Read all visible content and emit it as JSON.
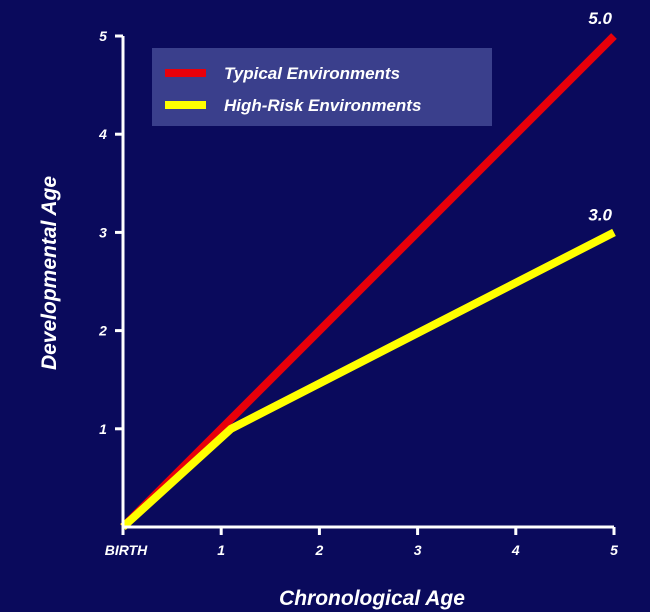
{
  "chart_data": {
    "type": "line",
    "xlabel": "Chronological Age",
    "ylabel": "Developmental Age",
    "xlim": [
      0,
      5
    ],
    "ylim": [
      0,
      5
    ],
    "x_ticks": [
      {
        "value": 0,
        "label": "BIRTH"
      },
      {
        "value": 1,
        "label": "1"
      },
      {
        "value": 2,
        "label": "2"
      },
      {
        "value": 3,
        "label": "3"
      },
      {
        "value": 4,
        "label": "4"
      },
      {
        "value": 5,
        "label": "5"
      }
    ],
    "y_ticks": [
      {
        "value": 1,
        "label": "1"
      },
      {
        "value": 2,
        "label": "2"
      },
      {
        "value": 3,
        "label": "3"
      },
      {
        "value": 4,
        "label": "4"
      },
      {
        "value": 5,
        "label": "5"
      }
    ],
    "grid": false,
    "legend": "top-left",
    "series": [
      {
        "name": "Typical Environments",
        "color": "#e8000a",
        "points": [
          [
            0,
            0
          ],
          [
            5,
            5
          ]
        ],
        "end_label": "5.0"
      },
      {
        "name": "High-Risk Environments",
        "color": "#ffff00",
        "points": [
          [
            0,
            0
          ],
          [
            1.1,
            1.0
          ],
          [
            5,
            3
          ]
        ],
        "end_label": "3.0"
      }
    ],
    "colors": {
      "background": "#0a0a5c",
      "legend_box": "#3a3f8c",
      "axis": "#ffffff"
    }
  }
}
